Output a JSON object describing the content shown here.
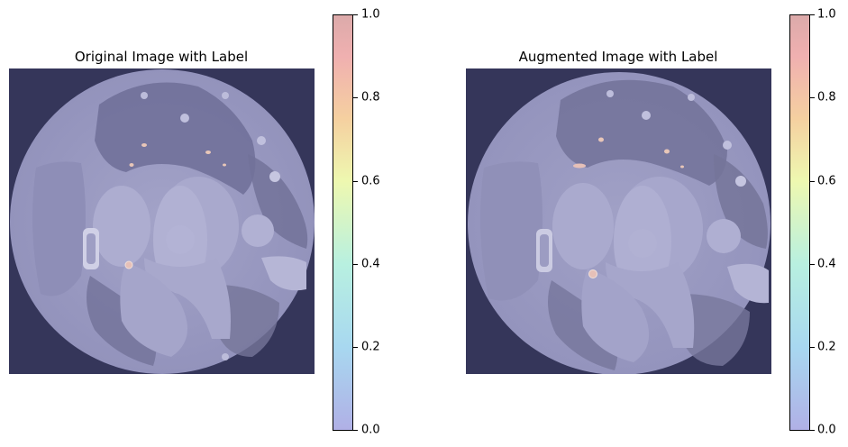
{
  "panels": [
    {
      "title": "Original Image with Label"
    },
    {
      "title": "Augmented Image with Label"
    }
  ],
  "colorbar": {
    "ticks": [
      "0.0",
      "0.2",
      "0.4",
      "0.6",
      "0.8",
      "1.0"
    ],
    "colormap": "jet (semi-transparent overlay)"
  },
  "colors": {
    "background": "#35365a",
    "tissue": "#9898c0",
    "lesion_highlight": "#e6c0b8"
  }
}
